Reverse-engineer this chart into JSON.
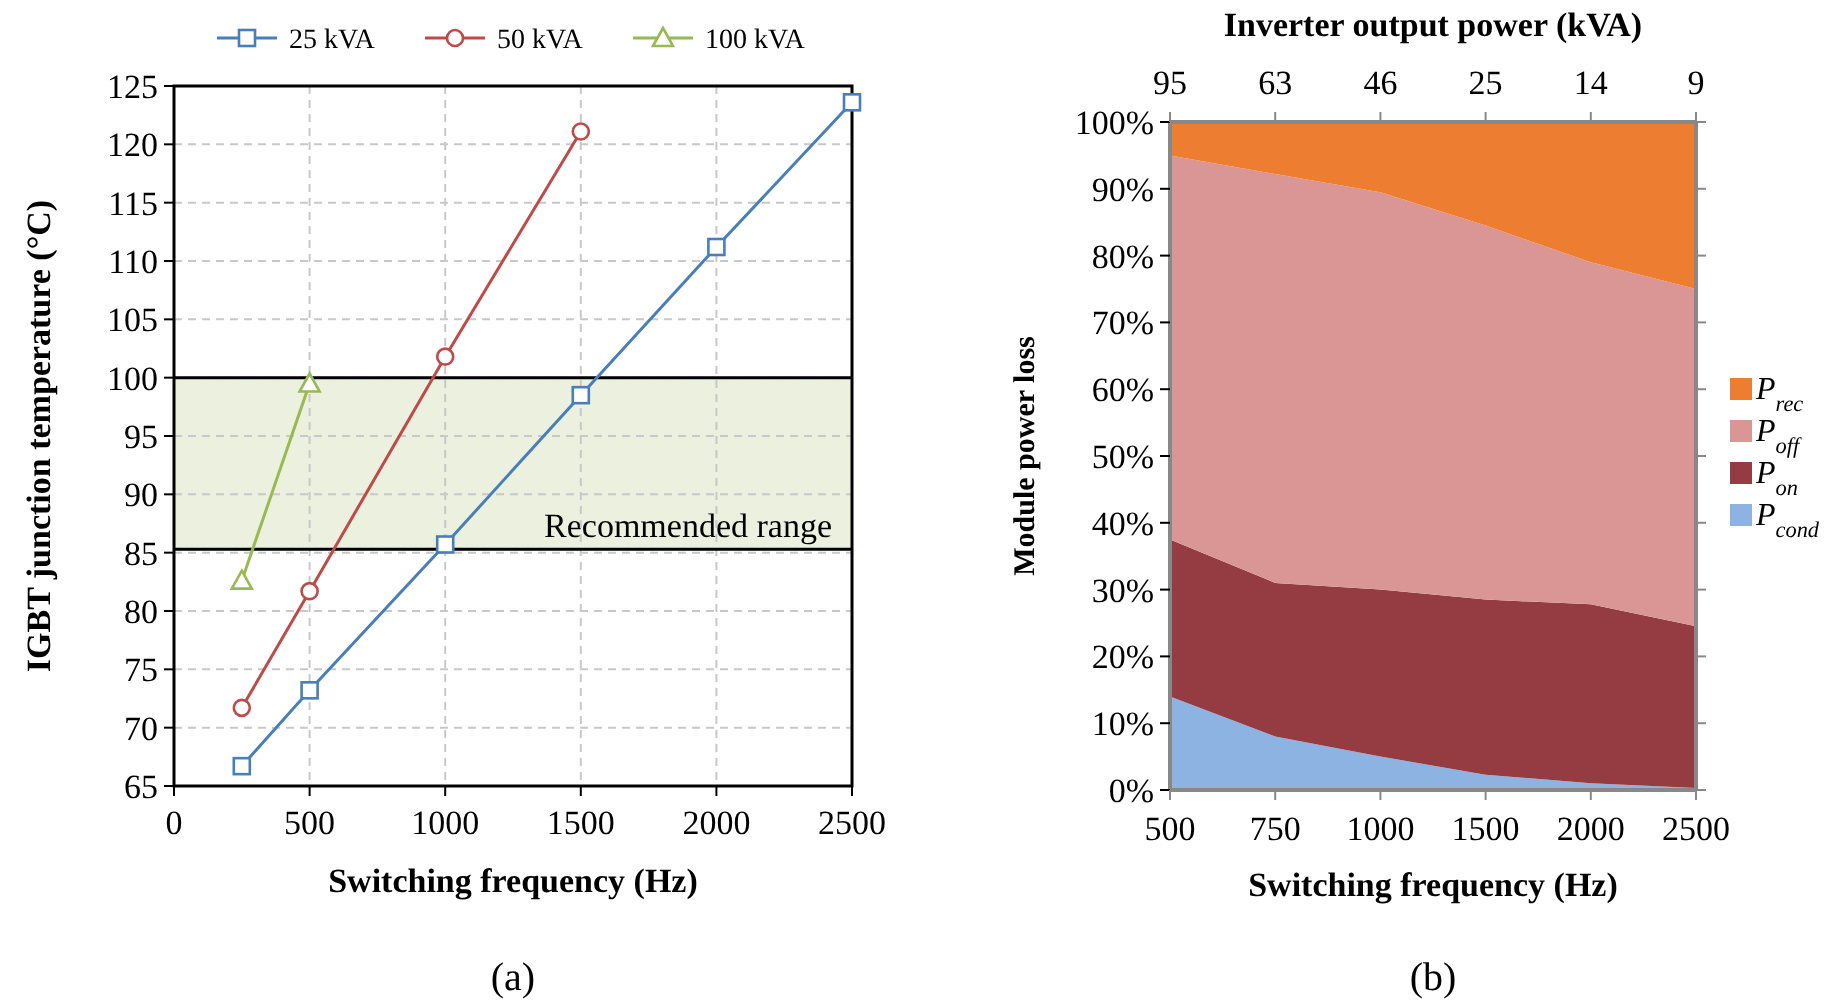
{
  "chart_data": [
    {
      "type": "line",
      "xlabel": "Switching frequency (Hz)",
      "ylabel": "IGBT junction temperature (°C)",
      "xlim": [
        0,
        2500
      ],
      "xticks": [
        0,
        500,
        1000,
        1500,
        2000,
        2500
      ],
      "ylim": [
        65,
        125
      ],
      "yticks": [
        65,
        70,
        75,
        80,
        85,
        90,
        95,
        100,
        105,
        110,
        115,
        120,
        125
      ],
      "grid": true,
      "legend": "top",
      "series": [
        {
          "name": "25 kVA",
          "color": "#4a7ebb",
          "marker": "square",
          "x": [
            250,
            500,
            1000,
            1500,
            2000,
            2500
          ],
          "values": [
            66.7,
            73.2,
            85.7,
            98.5,
            111.2,
            123.6
          ]
        },
        {
          "name": "50 kVA",
          "color": "#be4b48",
          "marker": "circle",
          "x": [
            250,
            500,
            1000,
            1500
          ],
          "values": [
            71.7,
            81.7,
            101.8,
            121.1
          ]
        },
        {
          "name": "100 kVA",
          "color": "#98b954",
          "marker": "triangle",
          "x": [
            250,
            500
          ],
          "values": [
            82.6,
            99.5
          ]
        }
      ],
      "bands": [
        {
          "axis": "y",
          "from": 85.3,
          "to": 100,
          "label": "Recommended range",
          "color": "#ebf1de"
        }
      ],
      "ref_lines": [
        {
          "axis": "y",
          "value": 100,
          "color": "#000000"
        },
        {
          "axis": "y",
          "value": 85.3,
          "color": "#000000"
        }
      ],
      "annotations": [
        "(a)"
      ]
    },
    {
      "type": "area",
      "stacked": true,
      "xlabel": "Switching frequency (Hz)",
      "x2label": "Inverter output power (kVA)",
      "ylabel": "Module power loss",
      "categories": [
        "500",
        "750",
        "1000",
        "1500",
        "2000",
        "2500"
      ],
      "ylim": [
        0,
        100
      ],
      "yticks": [
        {
          "value": 0,
          "label": "0%"
        },
        {
          "value": 10,
          "label": "10%"
        },
        {
          "value": 20,
          "label": "20%"
        },
        {
          "value": 30,
          "label": "30%"
        },
        {
          "value": 40,
          "label": "40%"
        },
        {
          "value": 50,
          "label": "50%"
        },
        {
          "value": 60,
          "label": "60%"
        },
        {
          "value": 70,
          "label": "70%"
        },
        {
          "value": 80,
          "label": "80%"
        },
        {
          "value": 90,
          "label": "90%"
        },
        {
          "value": 100,
          "label": "100%"
        }
      ],
      "legend": "right",
      "series": [
        {
          "name": "P$_{cond}$",
          "color": "#8db3e2",
          "values": [
            14,
            8,
            5,
            2.3,
            1,
            0.3
          ]
        },
        {
          "name": "P$_{on}$",
          "color": "#943c41",
          "values": [
            23.5,
            23,
            25,
            26.2,
            26.8,
            24.2
          ]
        },
        {
          "name": "P$_{off}$",
          "color": "#d99694",
          "values": [
            57.5,
            61.2,
            59.5,
            56,
            51.2,
            50.5
          ]
        },
        {
          "name": "P$_{rec}$",
          "color": "#ed7d31",
          "values": [
            5,
            7.8,
            10.5,
            15.5,
            21,
            25
          ]
        }
      ],
      "annotations": [
        "(b)",
        {
          "text": "95",
          "x": "500"
        },
        {
          "text": "63",
          "x": "750"
        },
        {
          "text": "46",
          "x": "1000"
        },
        {
          "text": "25",
          "x": "1500"
        },
        {
          "text": "14",
          "x": "2000"
        },
        {
          "text": "9",
          "x": "2500"
        }
      ]
    }
  ]
}
